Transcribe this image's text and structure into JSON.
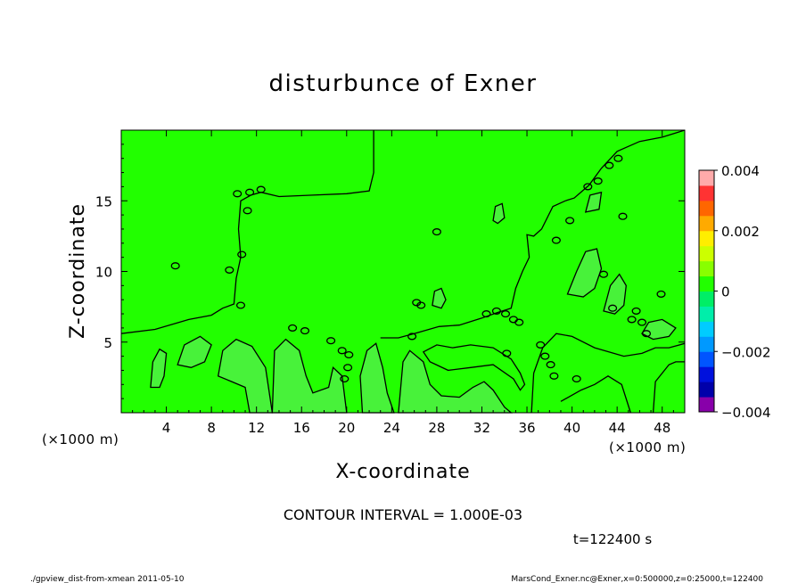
{
  "chart_data": {
    "type": "heatmap",
    "title": "disturbunce of Exner",
    "xlabel": "X-coordinate",
    "ylabel": "Z-coordinate",
    "x_unit": "(×1000 m)",
    "y_unit": "(×1000 m)",
    "xlim": [
      0,
      50
    ],
    "ylim": [
      0,
      20
    ],
    "x_ticks": [
      4,
      8,
      12,
      16,
      20,
      24,
      28,
      32,
      36,
      40,
      44,
      48
    ],
    "y_ticks": [
      5,
      10,
      15
    ],
    "fill_color": "#22ff00",
    "secondary_fill_color": "#48f23a",
    "contour_color": "#000000",
    "colorbar": {
      "min": -0.004,
      "max": 0.004,
      "labels": [
        "0.004",
        "0.002",
        "0",
        "−0.002",
        "−0.004"
      ],
      "label_values": [
        0.004,
        0.002,
        0,
        -0.002,
        -0.004
      ],
      "bands": [
        {
          "from": -0.004,
          "to": -0.0035,
          "color": "#8800aa"
        },
        {
          "from": -0.0035,
          "to": -0.003,
          "color": "#0000aa"
        },
        {
          "from": -0.003,
          "to": -0.0025,
          "color": "#0011dd"
        },
        {
          "from": -0.0025,
          "to": -0.002,
          "color": "#0055ff"
        },
        {
          "from": -0.002,
          "to": -0.0015,
          "color": "#0099ff"
        },
        {
          "from": -0.0015,
          "to": -0.001,
          "color": "#00ccff"
        },
        {
          "from": -0.001,
          "to": -0.0005,
          "color": "#00eeaa"
        },
        {
          "from": -0.0005,
          "to": 0,
          "color": "#00ee66"
        },
        {
          "from": 0,
          "to": 0.0005,
          "color": "#22ff00"
        },
        {
          "from": 0.0005,
          "to": 0.001,
          "color": "#88ff00"
        },
        {
          "from": 0.001,
          "to": 0.0015,
          "color": "#ccff00"
        },
        {
          "from": 0.0015,
          "to": 0.002,
          "color": "#ffee00"
        },
        {
          "from": 0.002,
          "to": 0.0025,
          "color": "#ffaa00"
        },
        {
          "from": 0.0025,
          "to": 0.003,
          "color": "#ff6600"
        },
        {
          "from": 0.003,
          "to": 0.0035,
          "color": "#ff3333"
        },
        {
          "from": 0.0035,
          "to": 0.004,
          "color": "#ffaaaa"
        }
      ]
    },
    "contour_interval_text": "CONTOUR INTERVAL = 1.000E-03",
    "time_text": "t=122400 s"
  },
  "footer": {
    "left": "./gpview_dist-from-xmean  2011-05-10",
    "right": "MarsCond_Exner.nc@Exner,x=0:500000,z=0:25000,t=122400"
  }
}
